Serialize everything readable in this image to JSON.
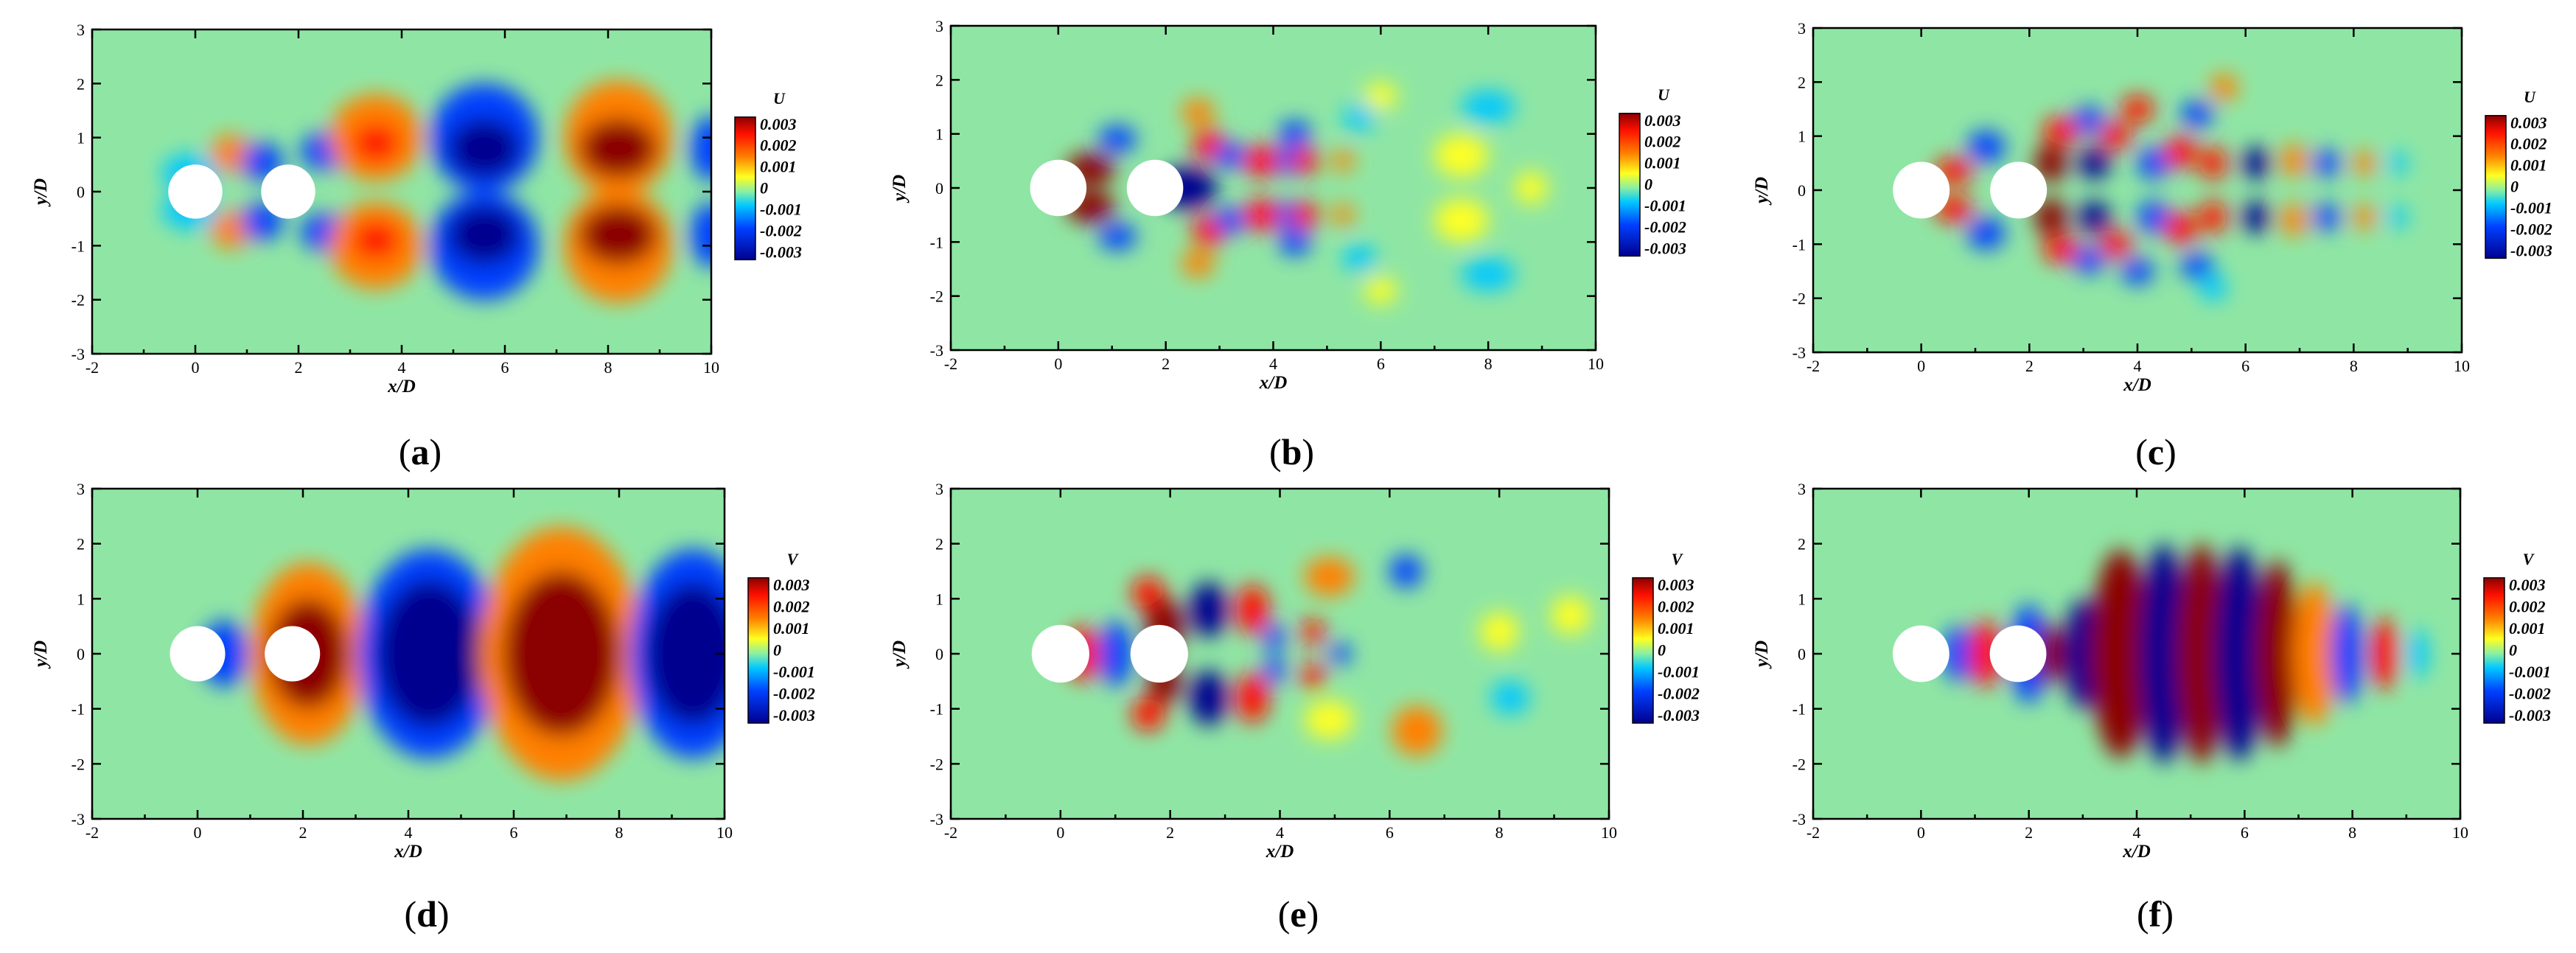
{
  "figure": {
    "panels": [
      {
        "caption_letter": "a",
        "variable": "U",
        "xlabel": "x/D",
        "ylabel": "y/D",
        "x_ticks": [
          "-2",
          "0",
          "2",
          "4",
          "6",
          "8",
          "10"
        ],
        "y_ticks": [
          "3",
          "2",
          "1",
          "0",
          "-1",
          "-2",
          "-3"
        ],
        "colorbar_ticks": [
          "0.003",
          "0.002",
          "0.001",
          "0",
          "-0.001",
          "-0.002",
          "-0.003"
        ]
      },
      {
        "caption_letter": "b",
        "variable": "U",
        "xlabel": "x/D",
        "ylabel": "y/D",
        "x_ticks": [
          "-2",
          "0",
          "2",
          "4",
          "6",
          "8",
          "10"
        ],
        "y_ticks": [
          "3",
          "2",
          "1",
          "0",
          "-1",
          "-2",
          "-3"
        ],
        "colorbar_ticks": [
          "0.003",
          "0.002",
          "0.001",
          "0",
          "-0.001",
          "-0.002",
          "-0.003"
        ]
      },
      {
        "caption_letter": "c",
        "variable": "U",
        "xlabel": "x/D",
        "ylabel": "y/D",
        "x_ticks": [
          "-2",
          "0",
          "2",
          "4",
          "6",
          "8",
          "10"
        ],
        "y_ticks": [
          "3",
          "2",
          "1",
          "0",
          "-1",
          "-2",
          "-3"
        ],
        "colorbar_ticks": [
          "0.003",
          "0.002",
          "0.001",
          "0",
          "-0.001",
          "-0.002",
          "-0.003"
        ]
      },
      {
        "caption_letter": "d",
        "variable": "V",
        "xlabel": "x/D",
        "ylabel": "y/D",
        "x_ticks": [
          "-2",
          "0",
          "2",
          "4",
          "6",
          "8",
          "10"
        ],
        "y_ticks": [
          "3",
          "2",
          "1",
          "0",
          "-1",
          "-2",
          "-3"
        ],
        "colorbar_ticks": [
          "0.003",
          "0.002",
          "0.001",
          "0",
          "-0.001",
          "-0.002",
          "-0.003"
        ]
      },
      {
        "caption_letter": "e",
        "variable": "V",
        "xlabel": "x/D",
        "ylabel": "y/D",
        "x_ticks": [
          "-2",
          "0",
          "2",
          "4",
          "6",
          "8",
          "10"
        ],
        "y_ticks": [
          "3",
          "2",
          "1",
          "0",
          "-1",
          "-2",
          "-3"
        ],
        "colorbar_ticks": [
          "0.003",
          "0.002",
          "0.001",
          "0",
          "-0.001",
          "-0.002",
          "-0.003"
        ]
      },
      {
        "caption_letter": "f",
        "variable": "V",
        "xlabel": "x/D",
        "ylabel": "y/D",
        "x_ticks": [
          "-2",
          "0",
          "2",
          "4",
          "6",
          "8",
          "10"
        ],
        "y_ticks": [
          "3",
          "2",
          "1",
          "0",
          "-1",
          "-2",
          "-3"
        ],
        "colorbar_ticks": [
          "0.003",
          "0.002",
          "0.001",
          "0",
          "-0.001",
          "-0.002",
          "-0.003"
        ]
      }
    ],
    "colormap": [
      "#00008f",
      "#0040ff",
      "#00c8ff",
      "#8cf0a0",
      "#ffff20",
      "#ff8000",
      "#ff1000",
      "#8b0000"
    ],
    "background_color": "#8fe6a4",
    "cylinder_color": "#ffffff",
    "cylinder_centers_xD": [
      0,
      1.8
    ]
  }
}
